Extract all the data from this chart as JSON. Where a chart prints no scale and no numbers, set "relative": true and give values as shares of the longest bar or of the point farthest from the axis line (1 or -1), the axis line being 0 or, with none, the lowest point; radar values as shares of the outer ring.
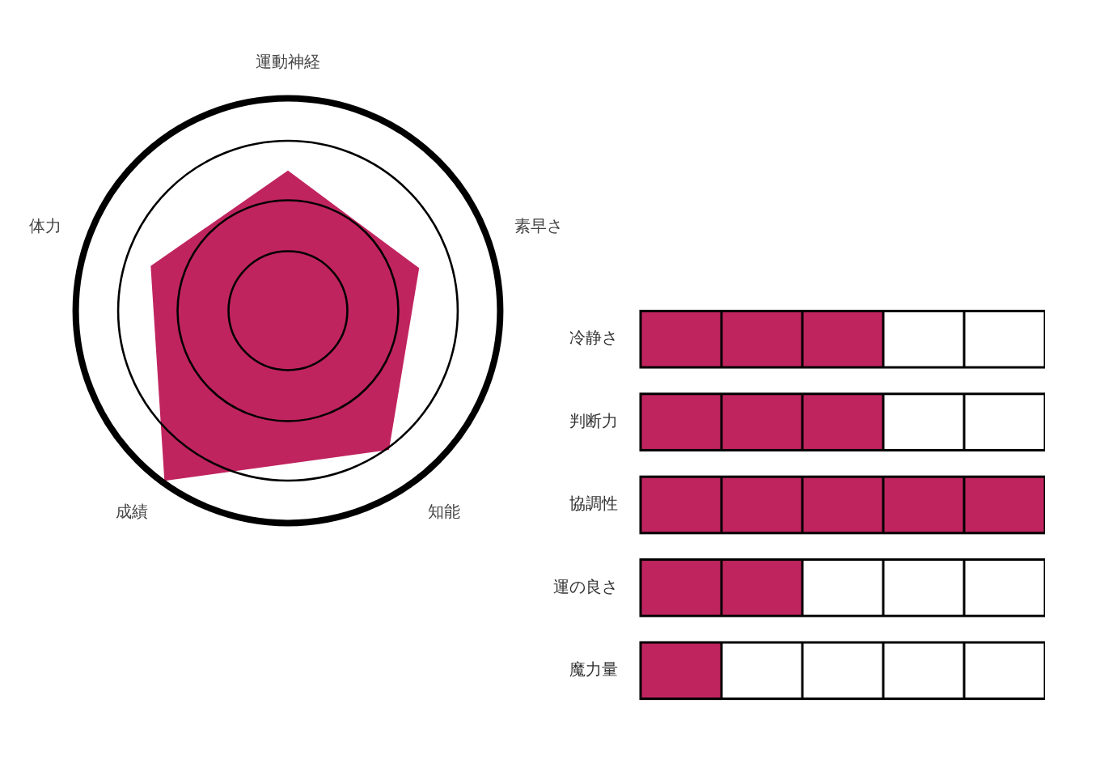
{
  "chart_data": [
    {
      "type": "radar",
      "categories": [
        "運動神経",
        "素早さ",
        "知能",
        "成績",
        "体力"
      ],
      "relative": true,
      "marker": "none",
      "legend": false,
      "series": [
        {
          "color": "#c0245f",
          "values": [
            0.66,
            0.65,
            0.81,
            0.99,
            0.68
          ]
        }
      ]
    },
    {
      "type": "bar",
      "orientation": "horizontal",
      "relative": true,
      "categories": [
        "冷静さ",
        "判断力",
        "協調性",
        "運の良さ",
        "魔力量"
      ],
      "values": [
        0.6,
        0.6,
        1,
        0.4,
        0.2
      ],
      "color": "#c0245f",
      "legend": false
    }
  ]
}
